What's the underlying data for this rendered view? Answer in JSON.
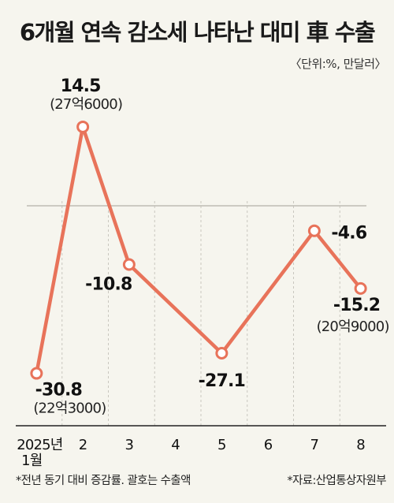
{
  "title": "6개월 연속 감소세 나타난 대미 車 수출",
  "unit_note": "〈단위:%, 만달러〉",
  "chart_data": {
    "type": "line",
    "categories": [
      "2025년 1월",
      "2",
      "3",
      "4",
      "5",
      "6",
      "7",
      "8"
    ],
    "x_labels": [
      {
        "line1": "2025년",
        "line2": "1월"
      },
      {
        "line1": "2"
      },
      {
        "line1": "3"
      },
      {
        "line1": "4"
      },
      {
        "line1": "5"
      },
      {
        "line1": "6"
      },
      {
        "line1": "7"
      },
      {
        "line1": "8"
      }
    ],
    "series": [
      {
        "points": [
          {
            "x": "2025년 1월",
            "y": -30.8,
            "label": "-30.8",
            "sub": "(22억3000)"
          },
          {
            "x": "2",
            "y": 14.5,
            "label": "14.5",
            "sub": "(27억6000)"
          },
          {
            "x": "3",
            "y": -10.8,
            "label": "-10.8"
          },
          {
            "x": "5",
            "y": -27.1,
            "label": "-27.1"
          },
          {
            "x": "7",
            "y": -4.6,
            "label": "-4.6"
          },
          {
            "x": "8",
            "y": -15.2,
            "label": "-15.2",
            "sub": "(20억9000)"
          }
        ]
      }
    ],
    "line_color": "#e8735a",
    "zero_line": true
  },
  "footnote_left": "*전년 동기 대비 증감률. 괄호는 수출액",
  "footnote_right": "*자료:산업통상자원부"
}
